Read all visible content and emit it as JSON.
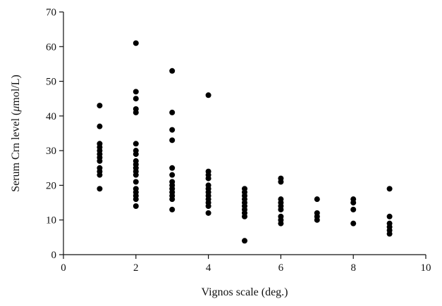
{
  "chart_data": {
    "type": "scatter",
    "title": "",
    "xlabel": "Vignos scale (deg.)",
    "ylabel_prefix": "Serum Crn level (",
    "ylabel_unit": "μ",
    "ylabel_suffix": "mol/L)",
    "xlim": [
      0,
      10
    ],
    "ylim": [
      0,
      70
    ],
    "xticks": [
      0,
      2,
      4,
      6,
      8,
      10
    ],
    "yticks": [
      0,
      10,
      20,
      30,
      40,
      50,
      60,
      70
    ],
    "grid": false,
    "legend": "none",
    "marker_color": "#000000",
    "points": [
      {
        "x": 1,
        "y": 43
      },
      {
        "x": 1,
        "y": 37
      },
      {
        "x": 1,
        "y": 32
      },
      {
        "x": 1,
        "y": 31
      },
      {
        "x": 1,
        "y": 30
      },
      {
        "x": 1,
        "y": 29
      },
      {
        "x": 1,
        "y": 28
      },
      {
        "x": 1,
        "y": 27
      },
      {
        "x": 1,
        "y": 25
      },
      {
        "x": 1,
        "y": 24
      },
      {
        "x": 1,
        "y": 23
      },
      {
        "x": 1,
        "y": 19
      },
      {
        "x": 2,
        "y": 61
      },
      {
        "x": 2,
        "y": 47
      },
      {
        "x": 2,
        "y": 45
      },
      {
        "x": 2,
        "y": 42
      },
      {
        "x": 2,
        "y": 41
      },
      {
        "x": 2,
        "y": 32
      },
      {
        "x": 2,
        "y": 30
      },
      {
        "x": 2,
        "y": 29
      },
      {
        "x": 2,
        "y": 27
      },
      {
        "x": 2,
        "y": 26
      },
      {
        "x": 2,
        "y": 25
      },
      {
        "x": 2,
        "y": 24
      },
      {
        "x": 2,
        "y": 23
      },
      {
        "x": 2,
        "y": 21
      },
      {
        "x": 2,
        "y": 19
      },
      {
        "x": 2,
        "y": 18
      },
      {
        "x": 2,
        "y": 17
      },
      {
        "x": 2,
        "y": 16
      },
      {
        "x": 2,
        "y": 14
      },
      {
        "x": 3,
        "y": 53
      },
      {
        "x": 3,
        "y": 41
      },
      {
        "x": 3,
        "y": 36
      },
      {
        "x": 3,
        "y": 33
      },
      {
        "x": 3,
        "y": 25
      },
      {
        "x": 3,
        "y": 23
      },
      {
        "x": 3,
        "y": 21
      },
      {
        "x": 3,
        "y": 20
      },
      {
        "x": 3,
        "y": 19
      },
      {
        "x": 3,
        "y": 18
      },
      {
        "x": 3,
        "y": 17
      },
      {
        "x": 3,
        "y": 16
      },
      {
        "x": 3,
        "y": 13
      },
      {
        "x": 4,
        "y": 46
      },
      {
        "x": 4,
        "y": 24
      },
      {
        "x": 4,
        "y": 23
      },
      {
        "x": 4,
        "y": 22
      },
      {
        "x": 4,
        "y": 20
      },
      {
        "x": 4,
        "y": 19
      },
      {
        "x": 4,
        "y": 18
      },
      {
        "x": 4,
        "y": 17
      },
      {
        "x": 4,
        "y": 16
      },
      {
        "x": 4,
        "y": 15
      },
      {
        "x": 4,
        "y": 14
      },
      {
        "x": 4,
        "y": 12
      },
      {
        "x": 5,
        "y": 19
      },
      {
        "x": 5,
        "y": 18
      },
      {
        "x": 5,
        "y": 17
      },
      {
        "x": 5,
        "y": 16
      },
      {
        "x": 5,
        "y": 15
      },
      {
        "x": 5,
        "y": 14
      },
      {
        "x": 5,
        "y": 13
      },
      {
        "x": 5,
        "y": 12
      },
      {
        "x": 5,
        "y": 11
      },
      {
        "x": 5,
        "y": 4
      },
      {
        "x": 6,
        "y": 22
      },
      {
        "x": 6,
        "y": 21
      },
      {
        "x": 6,
        "y": 16
      },
      {
        "x": 6,
        "y": 15
      },
      {
        "x": 6,
        "y": 14
      },
      {
        "x": 6,
        "y": 13
      },
      {
        "x": 6,
        "y": 11
      },
      {
        "x": 6,
        "y": 10
      },
      {
        "x": 6,
        "y": 9
      },
      {
        "x": 7,
        "y": 16
      },
      {
        "x": 7,
        "y": 12
      },
      {
        "x": 7,
        "y": 11
      },
      {
        "x": 7,
        "y": 10
      },
      {
        "x": 8,
        "y": 16
      },
      {
        "x": 8,
        "y": 15
      },
      {
        "x": 8,
        "y": 13
      },
      {
        "x": 8,
        "y": 9
      },
      {
        "x": 9,
        "y": 19
      },
      {
        "x": 9,
        "y": 11
      },
      {
        "x": 9,
        "y": 9
      },
      {
        "x": 9,
        "y": 8
      },
      {
        "x": 9,
        "y": 7
      },
      {
        "x": 9,
        "y": 6
      }
    ]
  }
}
